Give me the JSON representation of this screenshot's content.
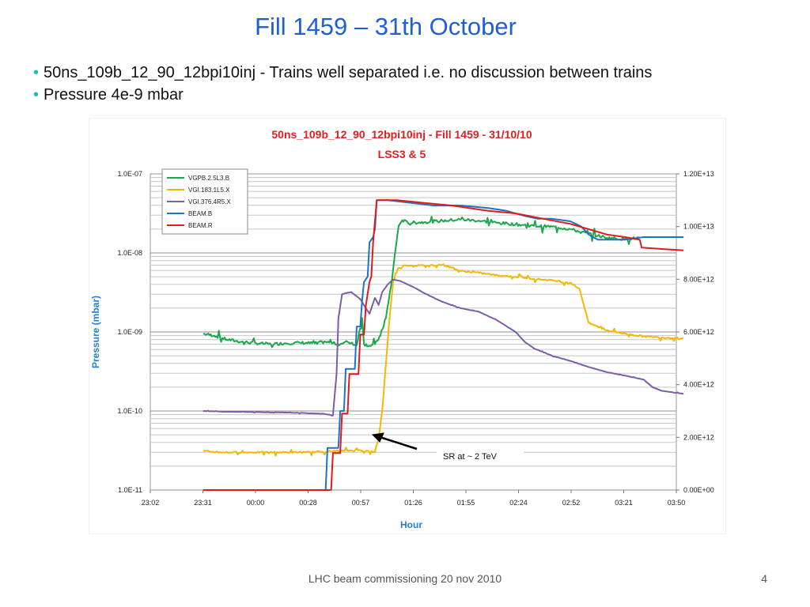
{
  "slide": {
    "title": "Fill 1459 – 31th October",
    "bullets": [
      "50ns_109b_12_90_12bpi10inj  - Trains well separated i.e. no discussion between trains",
      "Pressure 4e-9 mbar"
    ],
    "footer": "LHC beam commissioning 20 nov 2010",
    "page_number": "4"
  },
  "colors": {
    "title": "#1f5fd6",
    "bullet": "#16c4a8",
    "chart_title": "#e02020",
    "axis_label": "#1f7fd6"
  },
  "chart_data": {
    "type": "line",
    "title": "50ns_109b_12_90_12bpi10inj  - Fill 1459 - 31/10/10",
    "subtitle": "LSS3 & 5",
    "xlabel": "Hour",
    "ylabel": "Pressure (mbar)",
    "x_ticks": [
      "23:02",
      "23:31",
      "00:00",
      "00:28",
      "00:57",
      "01:26",
      "01:55",
      "02:24",
      "02:52",
      "03:21",
      "03:50"
    ],
    "y_ticks": [
      "1.0E-11",
      "1.0E-10",
      "1.0E-09",
      "1.0E-08",
      "1.0E-07"
    ],
    "y2_ticks": [
      "0.00E+00",
      "2.00E+12",
      "4.00E+12",
      "6.00E+12",
      "8.00E+12",
      "1.00E+13",
      "1.20E+13"
    ],
    "y_scale": "log",
    "ylim": [
      1e-11,
      1e-07
    ],
    "y2lim": [
      0,
      12000000000000.0
    ],
    "xlim_minutes": [
      0,
      288
    ],
    "legend_placement": "top-left",
    "grid": true,
    "annotation": "SR at ~ 2 TeV",
    "series": [
      {
        "name": "VGPB.2.5L3.B",
        "axis": "left",
        "color": "#1aa84a",
        "noise": 0.35,
        "points": [
          [
            29,
            9.5e-10
          ],
          [
            35,
            9e-10
          ],
          [
            42,
            8e-10
          ],
          [
            50,
            7.5e-10
          ],
          [
            58,
            7.2e-10
          ],
          [
            66,
            7e-10
          ],
          [
            74,
            7.2e-10
          ],
          [
            82,
            7.3e-10
          ],
          [
            90,
            7.2e-10
          ],
          [
            96,
            7.5e-10
          ],
          [
            100,
            7.2e-10
          ],
          [
            104,
            7e-10
          ],
          [
            108,
            7.5e-10
          ],
          [
            113,
            6.8e-10
          ],
          [
            116,
            1.5e-09
          ],
          [
            117,
            7e-10
          ],
          [
            120,
            6.7e-10
          ],
          [
            123,
            7e-10
          ],
          [
            126,
            9e-10
          ],
          [
            129,
            1.5e-09
          ],
          [
            132,
            4e-09
          ],
          [
            134,
            1e-08
          ],
          [
            136,
            2.2e-08
          ],
          [
            138,
            2.6e-08
          ],
          [
            141,
            2.4e-08
          ],
          [
            150,
            2.45e-08
          ],
          [
            160,
            2.55e-08
          ],
          [
            170,
            2.65e-08
          ],
          [
            180,
            2.55e-08
          ],
          [
            190,
            2.4e-08
          ],
          [
            200,
            2.3e-08
          ],
          [
            210,
            2.2e-08
          ],
          [
            220,
            2.15e-08
          ],
          [
            230,
            2e-08
          ],
          [
            235,
            1.85e-08
          ],
          [
            240,
            1.75e-08
          ],
          [
            245,
            1.65e-08
          ],
          [
            250,
            1.55e-08
          ],
          [
            260,
            1.5e-08
          ],
          [
            268,
            1.55e-08
          ]
        ]
      },
      {
        "name": "VGI.183.1L5.X",
        "axis": "left",
        "color": "#f5b800",
        "noise": 0.18,
        "points": [
          [
            29,
            3.1e-11
          ],
          [
            40,
            3e-11
          ],
          [
            55,
            3e-11
          ],
          [
            70,
            3e-11
          ],
          [
            85,
            3e-11
          ],
          [
            100,
            3.1e-11
          ],
          [
            115,
            3.2e-11
          ],
          [
            123,
            3e-11
          ],
          [
            125,
            4.5e-11
          ],
          [
            127,
            1e-10
          ],
          [
            129,
            4e-10
          ],
          [
            131,
            1.5e-09
          ],
          [
            133,
            4.5e-09
          ],
          [
            136,
            6.5e-09
          ],
          [
            140,
            7e-09
          ],
          [
            150,
            6.9e-09
          ],
          [
            160,
            7.1e-09
          ],
          [
            165,
            6.5e-09
          ],
          [
            170,
            5.9e-09
          ],
          [
            180,
            5.6e-09
          ],
          [
            190,
            5.2e-09
          ],
          [
            200,
            5e-09
          ],
          [
            210,
            4.7e-09
          ],
          [
            220,
            4.5e-09
          ],
          [
            230,
            4.2e-09
          ],
          [
            235,
            3.5e-09
          ],
          [
            240,
            1.3e-09
          ],
          [
            250,
            1.05e-09
          ],
          [
            260,
            9.5e-10
          ],
          [
            270,
            8.8e-10
          ],
          [
            280,
            8.5e-10
          ],
          [
            292,
            8.3e-10
          ]
        ]
      },
      {
        "name": "VGI.376.4R5.X",
        "axis": "left",
        "color": "#7b5ea7",
        "noise": 0.03,
        "points": [
          [
            29,
            1e-10
          ],
          [
            40,
            9.8e-11
          ],
          [
            55,
            9.7e-11
          ],
          [
            70,
            9.6e-11
          ],
          [
            85,
            9.4e-11
          ],
          [
            95,
            9.2e-11
          ],
          [
            100,
            8.8e-11
          ],
          [
            102,
            3e-10
          ],
          [
            103,
            1.5e-09
          ],
          [
            105,
            3e-09
          ],
          [
            110,
            3.2e-09
          ],
          [
            115,
            2.6e-09
          ],
          [
            118,
            2e-09
          ],
          [
            120,
            1.7e-09
          ],
          [
            123,
            2.7e-09
          ],
          [
            125,
            2.2e-09
          ],
          [
            127,
            3.2e-09
          ],
          [
            130,
            4e-09
          ],
          [
            133,
            4.6e-09
          ],
          [
            137,
            4.4e-09
          ],
          [
            145,
            3.6e-09
          ],
          [
            150,
            3.1e-09
          ],
          [
            160,
            2.4e-09
          ],
          [
            170,
            2e-09
          ],
          [
            180,
            1.8e-09
          ],
          [
            190,
            1.4e-09
          ],
          [
            200,
            1e-09
          ],
          [
            205,
            7.5e-10
          ],
          [
            210,
            6.2e-10
          ],
          [
            220,
            5e-10
          ],
          [
            230,
            4.3e-10
          ],
          [
            240,
            3.6e-10
          ],
          [
            250,
            3.1e-10
          ],
          [
            260,
            2.8e-10
          ],
          [
            270,
            2.5e-10
          ],
          [
            275,
            2e-10
          ],
          [
            280,
            1.8e-10
          ],
          [
            292,
            1.65e-10
          ]
        ]
      },
      {
        "name": "BEAM.B",
        "axis": "right",
        "color": "#1f73c4",
        "noise": 0,
        "points": [
          [
            29,
            0.0
          ],
          [
            96,
            0.0
          ],
          [
            97,
            1600000000000.0
          ],
          [
            103,
            1600000000000.0
          ],
          [
            104,
            3000000000000.0
          ],
          [
            106,
            3000000000000.0
          ],
          [
            107,
            4600000000000.0
          ],
          [
            112,
            4600000000000.0
          ],
          [
            113,
            6200000000000.0
          ],
          [
            115,
            6200000000000.0
          ],
          [
            116,
            7200000000000.0
          ],
          [
            117,
            7900000000000.0
          ],
          [
            119,
            8100000000000.0
          ],
          [
            120,
            9400000000000.0
          ],
          [
            122,
            9600000000000.0
          ],
          [
            123,
            9900000000000.0
          ],
          [
            124,
            11000000000000.0
          ],
          [
            130,
            11000000000000.0
          ],
          [
            155,
            10800000000000.0
          ],
          [
            170,
            10800000000000.0
          ],
          [
            185,
            10700000000000.0
          ],
          [
            195,
            10600000000000.0
          ],
          [
            205,
            10400000000000.0
          ],
          [
            212,
            10300000000000.0
          ],
          [
            220,
            10300000000000.0
          ],
          [
            230,
            10200000000000.0
          ],
          [
            236,
            10000000000000.0
          ],
          [
            240,
            9700000000000.0
          ],
          [
            245,
            9500000000000.0
          ],
          [
            260,
            9500000000000.0
          ],
          [
            270,
            9600000000000.0
          ],
          [
            280,
            9600000000000.0
          ],
          [
            292,
            9600000000000.0
          ]
        ]
      },
      {
        "name": "BEAM.R",
        "axis": "right",
        "color": "#e01b1b",
        "noise": 0,
        "points": [
          [
            29,
            0.0
          ],
          [
            99,
            0.0
          ],
          [
            100,
            1400000000000.0
          ],
          [
            104,
            1400000000000.0
          ],
          [
            105,
            2900000000000.0
          ],
          [
            108,
            2900000000000.0
          ],
          [
            109,
            4400000000000.0
          ],
          [
            114,
            4400000000000.0
          ],
          [
            115,
            5900000000000.0
          ],
          [
            117,
            5900000000000.0
          ],
          [
            118,
            7000000000000.0
          ],
          [
            120,
            7900000000000.0
          ],
          [
            121,
            8100000000000.0
          ],
          [
            122,
            9400000000000.0
          ],
          [
            124,
            11000000000000.0
          ],
          [
            135,
            11000000000000.0
          ],
          [
            150,
            10900000000000.0
          ],
          [
            165,
            10800000000000.0
          ],
          [
            185,
            10600000000000.0
          ],
          [
            200,
            10500000000000.0
          ],
          [
            215,
            10300000000000.0
          ],
          [
            230,
            10100000000000.0
          ],
          [
            240,
            9900000000000.0
          ],
          [
            250,
            9700000000000.0
          ],
          [
            260,
            9600000000000.0
          ],
          [
            268,
            9500000000000.0
          ],
          [
            269,
            9200000000000.0
          ],
          [
            280,
            9150000000000.0
          ],
          [
            292,
            9100000000000.0
          ]
        ]
      }
    ]
  }
}
